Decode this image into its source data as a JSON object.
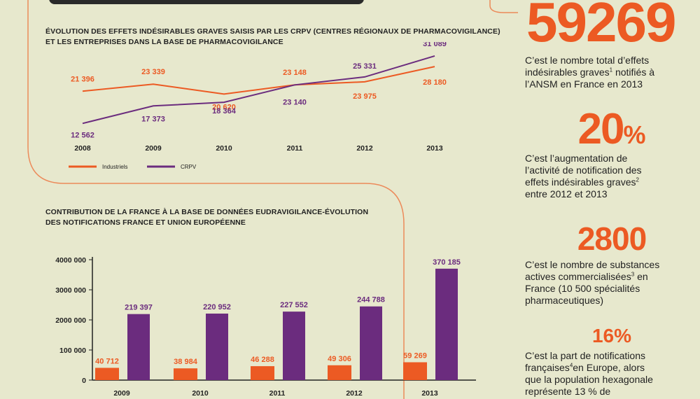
{
  "colors": {
    "background": "#e7e8cd",
    "orange": "#ec5a23",
    "purple": "#6b2c7e",
    "text": "#222222",
    "frame": "#ec8a5a"
  },
  "line_chart_title": {
    "line1": "ÉVOLUTION DES EFFETS INDÉSIRABLES GRAVES SAISIS PAR LES CRPV (CENTRES RÉGIONAUX DE PHARMACOVIGILANCE)",
    "line2": "ET LES ENTREPRISES DANS LA BASE DE PHARMACOVIGILANCE"
  },
  "bar_chart_title": {
    "line1": "CONTRIBUTION DE LA FRANCE À LA BASE DE DONNÉES EUDRAVIGILANCE-ÉVOLUTION",
    "line2": "DES NOTIFICATIONS FRANCE ET UNION EUROPÉENNE"
  },
  "chart_data": [
    {
      "type": "line",
      "x": [
        "2008",
        "2009",
        "2010",
        "2011",
        "2012",
        "2013"
      ],
      "series": [
        {
          "name": "Industriels",
          "color": "#ec5a23",
          "values": [
            21396,
            23339,
            20620,
            23148,
            23975,
            28180
          ],
          "labels": [
            "21 396",
            "23 339",
            "20 620",
            "23 148",
            "23 975",
            "28 180"
          ]
        },
        {
          "name": "CRPV",
          "color": "#6b2c7e",
          "values": [
            12562,
            17373,
            18364,
            23140,
            25331,
            31089
          ],
          "labels": [
            "12 562",
            "17 373",
            "18 364",
            "23 140",
            "25 331",
            "31 089"
          ]
        }
      ],
      "legend_position": "bottom-left",
      "grid": false
    },
    {
      "type": "bar",
      "categories": [
        "2009",
        "2010",
        "2011",
        "2012",
        "2013"
      ],
      "series": [
        {
          "color": "#ec5a23",
          "values": [
            40712,
            38984,
            46288,
            49306,
            59269
          ],
          "labels": [
            "40 712",
            "38 984",
            "46 288",
            "49 306",
            "59 269"
          ]
        },
        {
          "color": "#6b2c7e",
          "values": [
            219397,
            220952,
            227552,
            244788,
            370185
          ],
          "labels": [
            "219 397",
            "220 952",
            "227 552",
            "244 788",
            "370 185"
          ]
        }
      ],
      "y_ticks": [
        "0",
        "100 000",
        "2000 000",
        "3000 000",
        "4000 000"
      ],
      "grid": false
    }
  ],
  "stats": [
    {
      "value": "59269",
      "lines": [
        "C’est le nombre total d’effets",
        "indésirables graves",
        "notifiés à",
        "l’ANSM en France en 2013"
      ],
      "sup": "1"
    },
    {
      "value": "20",
      "unit": "%",
      "lines": [
        "C’est l’augmentation de",
        "l’activité de notification des",
        "effets indésirables graves",
        "entre 2012 et 2013"
      ],
      "sup": "2"
    },
    {
      "value": "2800",
      "lines": [
        "C’est le nombre de substances",
        "actives commercialisées",
        "en",
        "France (10 500 spécialités",
        "pharmaceutiques)"
      ],
      "sup": "3"
    },
    {
      "value": "16%",
      "lines": [
        "C’est la part de notifications",
        "françaises",
        "en Europe, alors",
        "que la population hexagonale",
        "représente 13 % de"
      ],
      "sup": "4"
    }
  ]
}
